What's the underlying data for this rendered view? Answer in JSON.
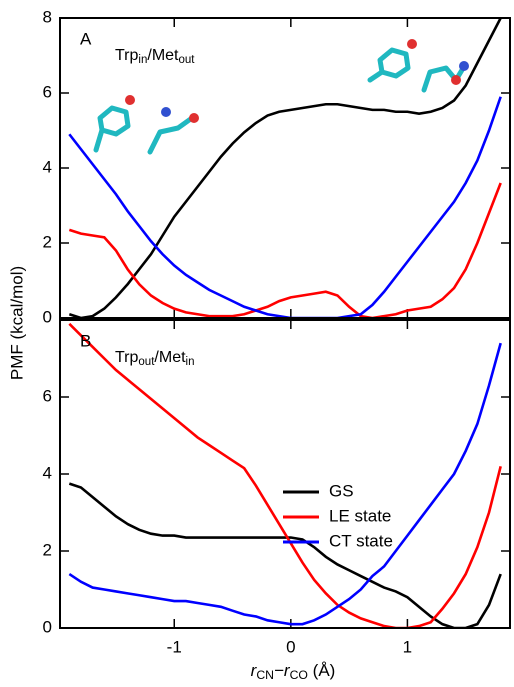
{
  "chart_data": [
    {
      "type": "line",
      "panel_label": "A",
      "label_parts": [
        "Trp",
        "in",
        "/Met",
        "out"
      ],
      "ylabel": "PMF (kcal/mol)",
      "x": [
        -1.9,
        -1.8,
        -1.7,
        -1.6,
        -1.5,
        -1.4,
        -1.3,
        -1.2,
        -1.1,
        -1.0,
        -0.9,
        -0.8,
        -0.7,
        -0.6,
        -0.5,
        -0.4,
        -0.3,
        -0.2,
        -0.1,
        0,
        0.1,
        0.2,
        0.3,
        0.4,
        0.5,
        0.6,
        0.7,
        0.8,
        0.9,
        1.0,
        1.1,
        1.2,
        1.3,
        1.4,
        1.5,
        1.6,
        1.7,
        1.8
      ],
      "xlim": [
        -1.98,
        1.88
      ],
      "ylim": [
        0,
        8
      ],
      "yticks": [
        0,
        2,
        4,
        6,
        8
      ],
      "series": [
        {
          "color": "#000000",
          "values": [
            0.1,
            0.0,
            0.05,
            0.25,
            0.55,
            0.9,
            1.3,
            1.7,
            2.2,
            2.7,
            3.1,
            3.5,
            3.9,
            4.3,
            4.65,
            4.95,
            5.2,
            5.4,
            5.5,
            5.55,
            5.6,
            5.65,
            5.7,
            5.7,
            5.65,
            5.6,
            5.55,
            5.55,
            5.5,
            5.5,
            5.45,
            5.5,
            5.6,
            5.8,
            6.2,
            6.8,
            7.4,
            8.0
          ]
        },
        {
          "color": "#ff0000",
          "values": [
            2.35,
            2.25,
            2.2,
            2.15,
            1.8,
            1.3,
            0.9,
            0.6,
            0.4,
            0.25,
            0.15,
            0.1,
            0.05,
            0.05,
            0.05,
            0.1,
            0.2,
            0.3,
            0.45,
            0.55,
            0.6,
            0.65,
            0.7,
            0.6,
            0.3,
            0.05,
            0.0,
            0.05,
            0.1,
            0.2,
            0.25,
            0.3,
            0.5,
            0.8,
            1.3,
            2.0,
            2.8,
            3.6
          ]
        },
        {
          "color": "#0000ff",
          "values": [
            4.9,
            4.5,
            4.1,
            3.7,
            3.3,
            2.85,
            2.45,
            2.05,
            1.7,
            1.4,
            1.15,
            0.95,
            0.75,
            0.6,
            0.45,
            0.3,
            0.2,
            0.1,
            0.05,
            0.0,
            0.0,
            0.0,
            0.0,
            0.0,
            0.05,
            0.1,
            0.35,
            0.7,
            1.1,
            1.5,
            1.9,
            2.3,
            2.7,
            3.1,
            3.6,
            4.2,
            5.0,
            5.9
          ]
        }
      ]
    },
    {
      "type": "line",
      "panel_label": "B",
      "label_parts": [
        "Trp",
        "out",
        "/Met",
        "in"
      ],
      "xlabel_parts": [
        "r",
        "CN",
        "−r",
        "CO",
        " (Å)"
      ],
      "x": [
        -1.9,
        -1.8,
        -1.7,
        -1.6,
        -1.5,
        -1.4,
        -1.3,
        -1.2,
        -1.1,
        -1.0,
        -0.9,
        -0.8,
        -0.7,
        -0.6,
        -0.5,
        -0.4,
        -0.3,
        -0.2,
        -0.1,
        0,
        0.1,
        0.2,
        0.3,
        0.4,
        0.5,
        0.6,
        0.7,
        0.8,
        0.9,
        1.0,
        1.1,
        1.2,
        1.3,
        1.4,
        1.5,
        1.6,
        1.7,
        1.8
      ],
      "xlim": [
        -1.98,
        1.88
      ],
      "xticks": [
        -1,
        0,
        1
      ],
      "ylim": [
        0,
        8
      ],
      "yticks": [
        0,
        2,
        4,
        6
      ],
      "legend": "center",
      "series": [
        {
          "name": "GS",
          "color": "#000000",
          "values": [
            3.75,
            3.65,
            3.4,
            3.15,
            2.9,
            2.7,
            2.55,
            2.45,
            2.4,
            2.4,
            2.35,
            2.35,
            2.35,
            2.35,
            2.35,
            2.35,
            2.35,
            2.35,
            2.35,
            2.35,
            2.3,
            2.1,
            1.85,
            1.65,
            1.5,
            1.35,
            1.2,
            1.05,
            0.95,
            0.8,
            0.55,
            0.3,
            0.1,
            0.0,
            0.0,
            0.1,
            0.6,
            1.4
          ]
        },
        {
          "name": "LE state",
          "color": "#ff0000",
          "values": [
            7.9,
            7.6,
            7.3,
            7.0,
            6.7,
            6.45,
            6.2,
            5.95,
            5.7,
            5.45,
            5.2,
            4.95,
            4.75,
            4.55,
            4.35,
            4.15,
            3.7,
            3.2,
            2.7,
            2.2,
            1.7,
            1.25,
            0.9,
            0.6,
            0.4,
            0.25,
            0.15,
            0.05,
            0.0,
            0.0,
            0.05,
            0.15,
            0.5,
            0.9,
            1.4,
            2.1,
            3.0,
            4.2
          ]
        },
        {
          "name": "CT state",
          "color": "#0000ff",
          "values": [
            1.4,
            1.2,
            1.05,
            1.0,
            0.95,
            0.9,
            0.85,
            0.8,
            0.75,
            0.7,
            0.7,
            0.65,
            0.6,
            0.55,
            0.45,
            0.35,
            0.3,
            0.2,
            0.15,
            0.1,
            0.1,
            0.2,
            0.35,
            0.55,
            0.75,
            1.0,
            1.35,
            1.6,
            2.0,
            2.4,
            2.8,
            3.2,
            3.6,
            4.0,
            4.6,
            5.3,
            6.3,
            7.4
          ]
        }
      ]
    }
  ]
}
